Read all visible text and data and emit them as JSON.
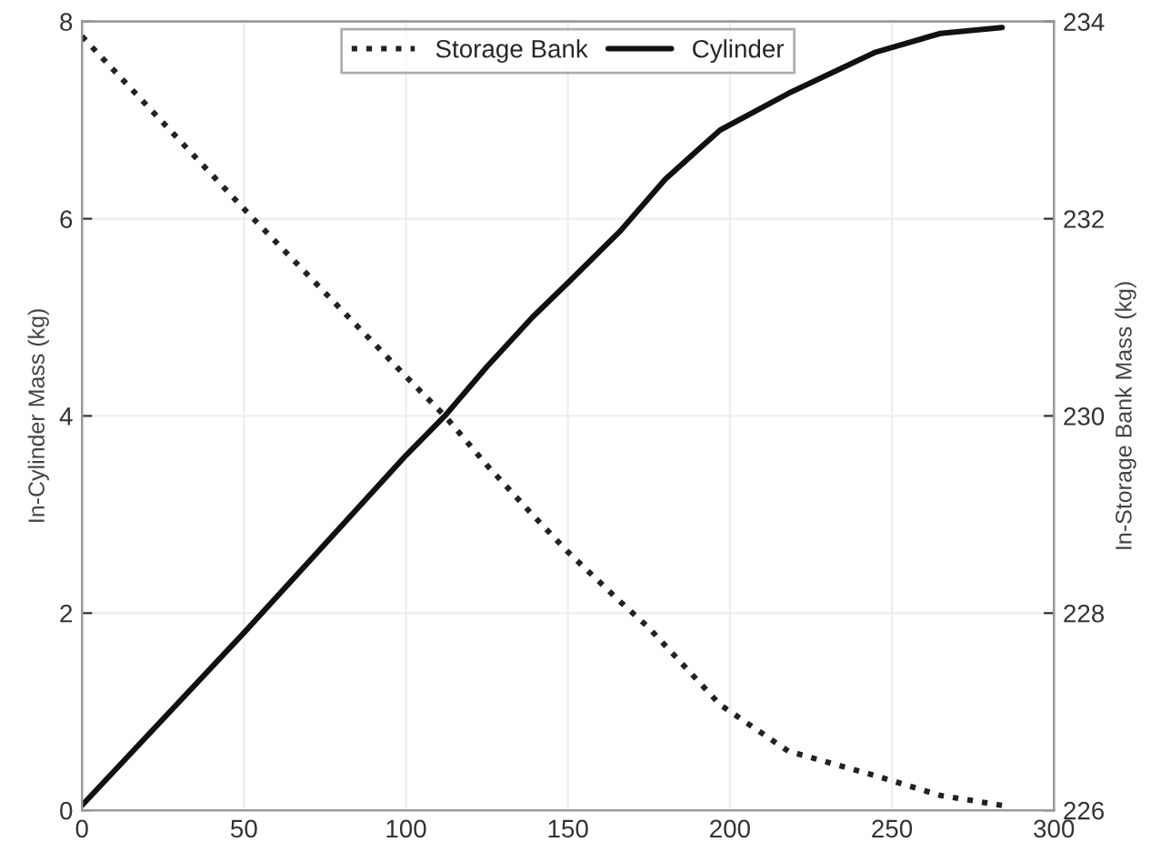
{
  "chart_data": {
    "type": "line",
    "ylabel": "In-Cylinder Mass (kg)",
    "y2label": "In-Storage Bank Mass (kg)",
    "xlim": [
      0,
      300
    ],
    "xticks": [
      0,
      50,
      100,
      150,
      200,
      250,
      300
    ],
    "ylim": [
      0,
      8
    ],
    "yticks": [
      0,
      2,
      4,
      6,
      8
    ],
    "y2lim": [
      226,
      234
    ],
    "y2ticks": [
      226,
      228,
      230,
      232,
      234
    ],
    "grid": true,
    "legend": "top",
    "series": [
      {
        "name": "Storage Bank",
        "color": "#222222",
        "axis": "y2",
        "line_style": "dotted",
        "x": [
          0,
          50,
          100,
          112,
          125,
          139,
          150,
          166,
          175,
          197,
          218,
          245,
          265,
          284
        ],
        "values": [
          233.85,
          232.1,
          230.4,
          230.0,
          229.5,
          229.0,
          228.62,
          228.12,
          227.85,
          227.07,
          226.6,
          226.35,
          226.15,
          226.05
        ]
      },
      {
        "name": "Cylinder",
        "color": "#111111",
        "axis": "y",
        "line_style": "solid",
        "x": [
          0,
          50,
          100,
          112,
          125,
          139,
          150,
          166,
          180,
          197,
          218,
          245,
          265,
          284
        ],
        "values": [
          0.05,
          1.8,
          3.6,
          4.0,
          4.5,
          5.0,
          5.35,
          5.87,
          6.4,
          6.9,
          7.27,
          7.69,
          7.88,
          7.94
        ]
      }
    ]
  }
}
